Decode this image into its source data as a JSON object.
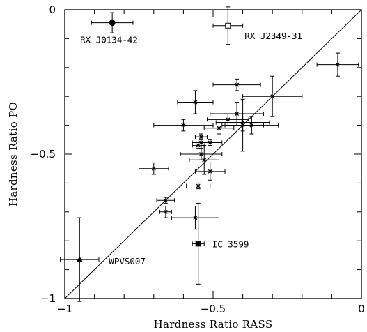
{
  "chart_data": {
    "type": "scatter",
    "xlabel": "Hardness Ratio RASS",
    "ylabel": "Hardness Ratio PO",
    "xlim": [
      -1,
      0
    ],
    "ylim": [
      -1,
      0
    ],
    "x_ticks": [
      -1,
      -0.5,
      0
    ],
    "y_ticks": [
      -1,
      -0.5,
      0
    ],
    "x_tick_labels": [
      "−1",
      "−0.5",
      "0"
    ],
    "y_tick_labels": [
      "−1",
      "−0.5",
      "0"
    ],
    "grid": false,
    "reference_line": "y = x",
    "points": [
      {
        "x": -0.84,
        "y": -0.045,
        "xerr": 0.07,
        "yerr": 0.035,
        "marker": "filled-circle",
        "label": "RX J0134-42"
      },
      {
        "x": -0.45,
        "y": -0.055,
        "xerr": 0.05,
        "yerr": 0.065,
        "marker": "open-square",
        "label": "RX J2349-31"
      },
      {
        "x": -0.95,
        "y": -0.865,
        "xerr": 0.065,
        "yerr": 0.145,
        "marker": "filled-triangle",
        "label": "WPVS007"
      },
      {
        "x": -0.55,
        "y": -0.81,
        "xerr": 0.02,
        "yerr": 0.14,
        "marker": "filled-square",
        "label": "IC 3599"
      },
      {
        "x": -0.08,
        "y": -0.19,
        "xerr": 0.07,
        "yerr": 0.04
      },
      {
        "x": -0.42,
        "y": -0.26,
        "xerr": 0.08,
        "yerr": 0.02
      },
      {
        "x": -0.3,
        "y": -0.3,
        "xerr": 0.1,
        "yerr": 0.07
      },
      {
        "x": -0.56,
        "y": -0.32,
        "xerr": 0.06,
        "yerr": 0.04
      },
      {
        "x": -0.4,
        "y": -0.4,
        "xerr": 0.07,
        "yerr": 0.09
      },
      {
        "x": -0.42,
        "y": -0.36,
        "xerr": 0.09,
        "yerr": 0.04
      },
      {
        "x": -0.45,
        "y": -0.38,
        "xerr": 0.07,
        "yerr": 0.02
      },
      {
        "x": -0.48,
        "y": -0.41,
        "xerr": 0.05,
        "yerr": 0.02
      },
      {
        "x": -0.4,
        "y": -0.39,
        "xerr": 0.09,
        "yerr": 0.03
      },
      {
        "x": -0.37,
        "y": -0.4,
        "xerr": 0.09,
        "yerr": 0.03
      },
      {
        "x": -0.6,
        "y": -0.4,
        "xerr": 0.1,
        "yerr": 0.02
      },
      {
        "x": -0.54,
        "y": -0.44,
        "xerr": 0.02,
        "yerr": 0.01
      },
      {
        "x": -0.51,
        "y": -0.46,
        "xerr": 0.04,
        "yerr": 0.01
      },
      {
        "x": -0.54,
        "y": -0.46,
        "xerr": 0.03,
        "yerr": 0.02
      },
      {
        "x": -0.55,
        "y": -0.47,
        "xerr": 0.02,
        "yerr": 0.01
      },
      {
        "x": -0.54,
        "y": -0.5,
        "xerr": 0.07,
        "yerr": 0.02
      },
      {
        "x": -0.53,
        "y": -0.52,
        "xerr": 0.05,
        "yerr": 0.05
      },
      {
        "x": -0.51,
        "y": -0.56,
        "xerr": 0.05,
        "yerr": 0.03
      },
      {
        "x": -0.7,
        "y": -0.55,
        "xerr": 0.05,
        "yerr": 0.02
      },
      {
        "x": -0.55,
        "y": -0.61,
        "xerr": 0.04,
        "yerr": 0.01
      },
      {
        "x": -0.66,
        "y": -0.66,
        "xerr": 0.03,
        "yerr": 0.01
      },
      {
        "x": -0.66,
        "y": -0.7,
        "xerr": 0.02,
        "yerr": 0.02
      },
      {
        "x": -0.56,
        "y": -0.72,
        "xerr": 0.08,
        "yerr": 0.04
      }
    ],
    "annotations": [
      "RX J0134-42",
      "RX J2349-31",
      "WPVS007",
      "IC 3599"
    ]
  }
}
